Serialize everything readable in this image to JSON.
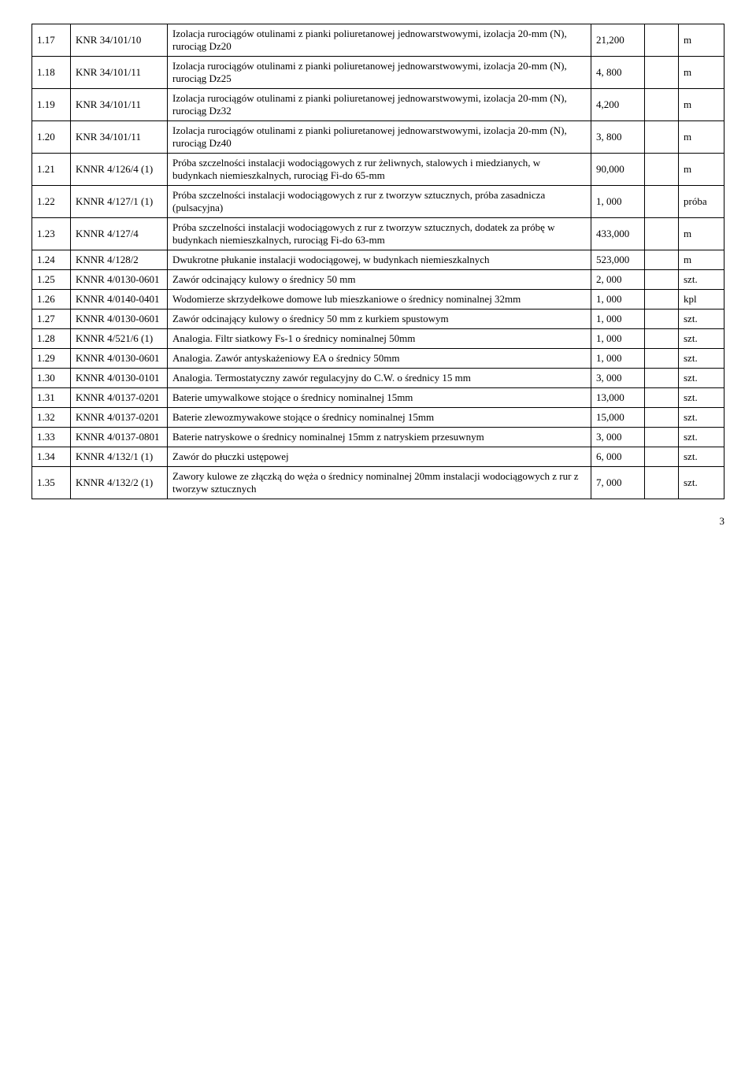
{
  "rows": [
    {
      "num": "1.17",
      "code": "KNR 34/101/10",
      "desc": "Izolacja rurociągów otulinami z pianki poliuretanowej  jednowarstwowymi, izolacja 20-mm (N), rurociąg Dz20",
      "qty": "21,200",
      "unit": "m"
    },
    {
      "num": "1.18",
      "code": "KNR 34/101/11",
      "desc": "Izolacja rurociągów otulinami z pianki poliuretanowej jednowarstwowymi, izolacja 20-mm (N), rurociąg Dz25",
      "qty": "4, 800",
      "unit": "m"
    },
    {
      "num": "1.19",
      "code": "KNR 34/101/11",
      "desc": "Izolacja rurociągów otulinami z pianki poliuretanowej  jednowarstwowymi, izolacja 20-mm (N), rurociąg Dz32",
      "qty": "4,200",
      "unit": "m"
    },
    {
      "num": "1.20",
      "code": "KNR 34/101/11",
      "desc": "Izolacja rurociągów otulinami z pianki poliuretanowej jednowarstwowymi, izolacja 20-mm (N), rurociąg Dz40",
      "qty": "3, 800",
      "unit": "m"
    },
    {
      "num": "1.21",
      "code": "KNNR 4/126/4 (1)",
      "desc": "Próba szczelności instalacji wodociągowych z rur żeliwnych, stalowych i miedzianych, w budynkach niemieszkalnych, rurociąg Fi-do 65-mm",
      "qty": "90,000",
      "unit": "m"
    },
    {
      "num": "1.22",
      "code": "KNNR 4/127/1 (1)",
      "desc": "Próba szczelności instalacji wodociągowych z rur z tworzyw sztucznych, próba zasadnicza (pulsacyjna)",
      "qty": "1, 000",
      "unit": "próba"
    },
    {
      "num": "1.23",
      "code": "KNNR 4/127/4",
      "desc": "Próba szczelności instalacji wodociągowych z rur z tworzyw sztucznych, dodatek za próbę w budynkach niemieszkalnych, rurociąg Fi-do 63-mm",
      "qty": "433,000",
      "unit": "m"
    },
    {
      "num": "1.24",
      "code": "KNNR 4/128/2",
      "desc": "Dwukrotne płukanie instalacji wodociągowej, w budynkach niemieszkalnych",
      "qty": "523,000",
      "unit": "m"
    },
    {
      "num": "1.25",
      "code": "KNNR 4/0130-0601",
      "desc": "Zawór odcinający kulowy o średnicy 50 mm",
      "qty": "2, 000",
      "unit": "szt."
    },
    {
      "num": "1.26",
      "code": "KNNR 4/0140-0401",
      "desc": "Wodomierze skrzydełkowe domowe lub mieszkaniowe o średnicy nominalnej 32mm",
      "qty": "1, 000",
      "unit": "kpl"
    },
    {
      "num": "1.27",
      "code": "KNNR 4/0130-0601",
      "desc": "Zawór odcinający kulowy o średnicy 50 mm z kurkiem spustowym",
      "qty": "1, 000",
      "unit": "szt."
    },
    {
      "num": "1.28",
      "code": "KNNR 4/521/6 (1)",
      "desc": "Analogia. Filtr siatkowy Fs-1 o średnicy nominalnej 50mm",
      "qty": "1, 000",
      "unit": "szt."
    },
    {
      "num": "1.29",
      "code": "KNNR 4/0130-0601",
      "desc": "Analogia. Zawór antyskażeniowy EA o średnicy 50mm",
      "qty": "1, 000",
      "unit": "szt."
    },
    {
      "num": "1.30",
      "code": "KNNR 4/0130-0101",
      "desc": "Analogia. Termostatyczny zawór regulacyjny do C.W. o średnicy 15 mm",
      "qty": "3, 000",
      "unit": "szt."
    },
    {
      "num": "1.31",
      "code": "KNNR 4/0137-0201",
      "desc": "Baterie umywalkowe stojące o średnicy nominalnej 15mm",
      "qty": "13,000",
      "unit": "szt."
    },
    {
      "num": "1.32",
      "code": "KNNR 4/0137-0201",
      "desc": "Baterie zlewozmywakowe stojące o średnicy nominalnej 15mm",
      "qty": "15,000",
      "unit": "szt."
    },
    {
      "num": "1.33",
      "code": "KNNR 4/0137-0801",
      "desc": "Baterie natryskowe o średnicy nominalnej 15mm z natryskiem przesuwnym",
      "qty": "3, 000",
      "unit": "szt."
    },
    {
      "num": "1.34",
      "code": "KNNR 4/132/1 (1)",
      "desc": "Zawór do płuczki ustępowej",
      "qty": "6, 000",
      "unit": "szt."
    },
    {
      "num": "1.35",
      "code": "KNNR 4/132/2 (1)",
      "desc": "Zawory kulowe ze złączką do węża o średnicy nominalnej 20mm instalacji wodociągowych z rur z tworzyw sztucznych",
      "qty": "7, 000",
      "unit": "szt."
    }
  ],
  "pageNumber": "3"
}
